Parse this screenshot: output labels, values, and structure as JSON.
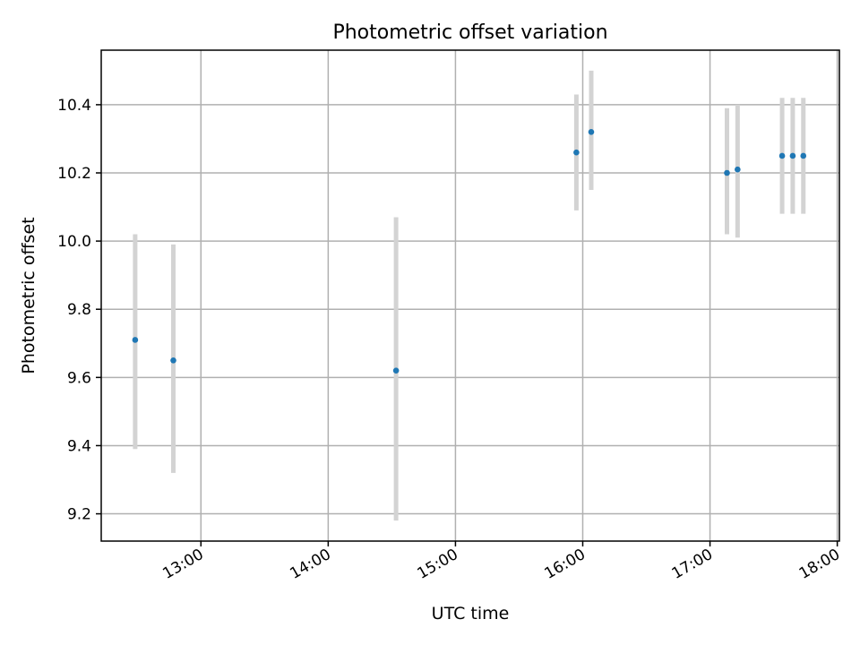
{
  "chart_data": {
    "type": "scatter",
    "title": "Photometric offset variation",
    "xlabel": "UTC time",
    "ylabel": "Photometric offset",
    "x_axis_type": "time",
    "xlim": [
      "12:13",
      "18:01"
    ],
    "ylim": [
      9.12,
      10.56
    ],
    "x_ticks": [
      "13:00",
      "14:00",
      "15:00",
      "16:00",
      "17:00",
      "18:00"
    ],
    "y_ticks": [
      "9.2",
      "9.4",
      "9.6",
      "9.8",
      "10.0",
      "10.2",
      "10.4"
    ],
    "grid": true,
    "legend": "none",
    "marker_color": "#1f77b4",
    "errorbar_color": "#d3d3d3",
    "points": [
      {
        "time": "12:29",
        "offset": 9.71,
        "low": 9.39,
        "high": 10.02
      },
      {
        "time": "12:47",
        "offset": 9.65,
        "low": 9.32,
        "high": 9.99
      },
      {
        "time": "14:32",
        "offset": 9.62,
        "low": 9.18,
        "high": 10.07
      },
      {
        "time": "15:57",
        "offset": 10.26,
        "low": 10.09,
        "high": 10.43
      },
      {
        "time": "16:04",
        "offset": 10.32,
        "low": 10.15,
        "high": 10.5
      },
      {
        "time": "17:08",
        "offset": 10.2,
        "low": 10.02,
        "high": 10.39
      },
      {
        "time": "17:13",
        "offset": 10.21,
        "low": 10.01,
        "high": 10.4
      },
      {
        "time": "17:34",
        "offset": 10.25,
        "low": 10.08,
        "high": 10.42
      },
      {
        "time": "17:39",
        "offset": 10.25,
        "low": 10.08,
        "high": 10.42
      },
      {
        "time": "17:44",
        "offset": 10.25,
        "low": 10.08,
        "high": 10.42
      }
    ]
  }
}
